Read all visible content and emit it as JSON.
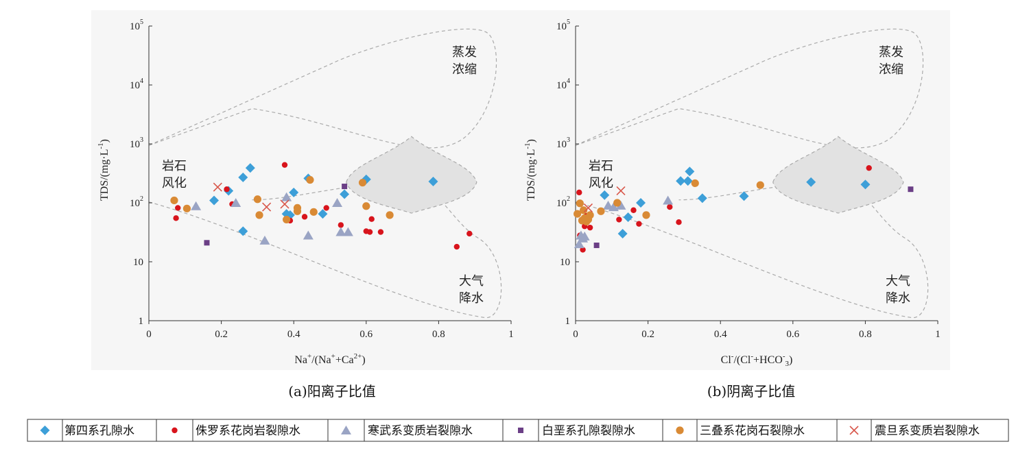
{
  "charts": [
    {
      "id": "a",
      "caption": "(a)阳离子比值",
      "ylabel": "TDS/(mg·L",
      "ylabel_sup": "-1",
      "ylabel_end": ")",
      "xlabel_parts": [
        [
          "Na",
          ""
        ],
        [
          "+",
          "sup"
        ],
        [
          "/(Na",
          ""
        ],
        [
          "+",
          "sup"
        ],
        [
          "+Ca",
          ""
        ],
        [
          "2+",
          "sup"
        ],
        [
          ")",
          ""
        ]
      ],
      "region_weathering": [
        "岩石",
        "风化"
      ],
      "region_evaporation": [
        "蒸发",
        "浓缩"
      ],
      "region_precipitation": [
        "大气",
        "降水"
      ]
    },
    {
      "id": "b",
      "caption": "(b)阴离子比值",
      "ylabel": "TDS/(mg·L",
      "ylabel_sup": "-1",
      "ylabel_end": ")",
      "xlabel_parts": [
        [
          "Cl",
          ""
        ],
        [
          "-",
          "sup"
        ],
        [
          "/(Cl",
          ""
        ],
        [
          "-",
          "sup"
        ],
        [
          "+HCO",
          ""
        ],
        [
          "-",
          "sup"
        ],
        [
          "3",
          "sub"
        ],
        [
          ")",
          ""
        ]
      ],
      "region_weathering": [
        "岩石",
        "风化"
      ],
      "region_evaporation": [
        "蒸发",
        "浓缩"
      ],
      "region_precipitation": [
        "大气",
        "降水"
      ]
    }
  ],
  "chart_data": [
    {
      "type": "scatter",
      "xlim": [
        0,
        1
      ],
      "ylim": [
        1,
        100000
      ],
      "yscale": "log",
      "xticks": [
        "0",
        "0.2",
        "0.4",
        "0.6",
        "0.8",
        "1"
      ],
      "yticks": [
        [
          "1",
          ""
        ],
        [
          "10",
          ""
        ],
        [
          "10",
          "2"
        ],
        [
          "10",
          "3"
        ],
        [
          "10",
          "4"
        ],
        [
          "10",
          "5"
        ]
      ],
      "series": [
        {
          "name": "第四系孔隙水",
          "x": [
            0.18,
            0.22,
            0.26,
            0.28,
            0.26,
            0.38,
            0.39,
            0.4,
            0.44,
            0.48,
            0.54,
            0.6,
            0.785
          ],
          "y": [
            110,
            160,
            270,
            390,
            33,
            65,
            62,
            150,
            260,
            65,
            140,
            250,
            230
          ]
        },
        {
          "name": "侏罗系花岗岩裂隙水",
          "x": [
            0.08,
            0.075,
            0.215,
            0.23,
            0.375,
            0.39,
            0.43,
            0.49,
            0.53,
            0.6,
            0.61,
            0.615,
            0.64,
            0.85,
            0.885
          ],
          "y": [
            82,
            55,
            170,
            95,
            440,
            50,
            58,
            82,
            42,
            33,
            32,
            53,
            32,
            18,
            30
          ]
        },
        {
          "name": "寒武系变质岩裂隙水",
          "x": [
            0.13,
            0.24,
            0.32,
            0.38,
            0.44,
            0.52,
            0.53,
            0.55
          ],
          "y": [
            88,
            100,
            23,
            125,
            28,
            100,
            32,
            32
          ]
        },
        {
          "name": "白垩系孔隙裂隙水",
          "x": [
            0.16,
            0.54
          ],
          "y": [
            21,
            190
          ]
        },
        {
          "name": "三叠系花岗石裂隙水",
          "x": [
            0.07,
            0.105,
            0.3,
            0.305,
            0.38,
            0.41,
            0.41,
            0.445,
            0.455,
            0.59,
            0.6,
            0.665
          ],
          "y": [
            110,
            80,
            115,
            62,
            52,
            82,
            72,
            245,
            70,
            220,
            88,
            62
          ]
        },
        {
          "name": "震旦系变质岩裂隙水",
          "x": [
            0.19,
            0.325,
            0.375
          ],
          "y": [
            185,
            85,
            95
          ]
        }
      ]
    },
    {
      "type": "scatter",
      "xlim": [
        0,
        1
      ],
      "ylim": [
        1,
        100000
      ],
      "yscale": "log",
      "xticks": [
        "0",
        "0.2",
        "0.4",
        "0.6",
        "0.8",
        "1"
      ],
      "yticks": [
        [
          "1",
          ""
        ],
        [
          "10",
          ""
        ],
        [
          "10",
          "2"
        ],
        [
          "10",
          "3"
        ],
        [
          "10",
          "4"
        ],
        [
          "10",
          "5"
        ]
      ],
      "series": [
        {
          "name": "第四系孔隙水",
          "x": [
            0.08,
            0.13,
            0.145,
            0.18,
            0.29,
            0.31,
            0.315,
            0.35,
            0.465,
            0.65,
            0.8
          ],
          "y": [
            135,
            30,
            57,
            100,
            235,
            235,
            340,
            120,
            130,
            225,
            205
          ]
        },
        {
          "name": "侏罗系花岗岩裂隙水",
          "x": [
            0.01,
            0.012,
            0.02,
            0.025,
            0.03,
            0.04,
            0.12,
            0.16,
            0.175,
            0.26,
            0.285,
            0.81
          ],
          "y": [
            150,
            28,
            16,
            40,
            60,
            38,
            52,
            75,
            44,
            85,
            47,
            390
          ]
        },
        {
          "name": "寒武系变质岩裂隙水",
          "x": [
            0.01,
            0.015,
            0.02,
            0.025,
            0.09,
            0.105,
            0.125,
            0.255
          ],
          "y": [
            20,
            28,
            25,
            27,
            90,
            85,
            90,
            110
          ]
        },
        {
          "name": "白垩系孔隙裂隙水",
          "x": [
            0.058,
            0.925
          ],
          "y": [
            19,
            170
          ]
        },
        {
          "name": "三叠系花岗石裂隙水",
          "x": [
            0.005,
            0.012,
            0.018,
            0.022,
            0.025,
            0.03,
            0.035,
            0.04,
            0.07,
            0.115,
            0.195,
            0.33,
            0.51
          ],
          "y": [
            65,
            98,
            50,
            75,
            55,
            48,
            52,
            62,
            72,
            100,
            62,
            215,
            200
          ]
        },
        {
          "name": "震旦系变质岩裂隙水",
          "x": [
            0.035,
            0.125
          ],
          "y": [
            82,
            160
          ]
        }
      ]
    }
  ],
  "legend": [
    {
      "label": "第四系孔隙水",
      "marker": "diamond",
      "color": "#3d9fd8"
    },
    {
      "label": "侏罗系花岗岩裂隙水",
      "marker": "circle",
      "color": "#d8141c"
    },
    {
      "label": "寒武系变质岩裂隙水",
      "marker": "triangle",
      "color": "#9aa4c4"
    },
    {
      "label": "白垩系孔隙裂隙水",
      "marker": "square",
      "color": "#6b3f86"
    },
    {
      "label": "三叠系花岗石裂隙水",
      "marker": "circle",
      "color": "#d98a35"
    },
    {
      "label": "震旦系变质岩裂隙水",
      "marker": "cross",
      "color": "#d8564a"
    }
  ]
}
